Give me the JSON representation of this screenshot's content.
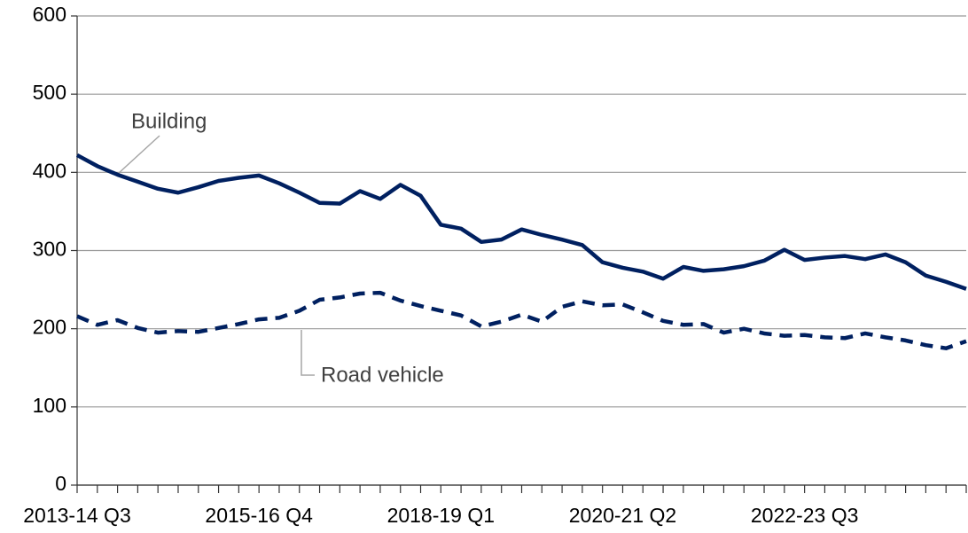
{
  "chart_data": {
    "type": "line",
    "categories": [
      "2013-14 Q3",
      null,
      null,
      null,
      null,
      null,
      null,
      null,
      null,
      "2015-16 Q4",
      null,
      null,
      null,
      null,
      null,
      null,
      null,
      null,
      "2018-19 Q1",
      null,
      null,
      null,
      null,
      null,
      null,
      null,
      null,
      "2020-21 Q2",
      null,
      null,
      null,
      null,
      null,
      null,
      null,
      null,
      "2022-23 Q3",
      null,
      null,
      null,
      null,
      null,
      null,
      null,
      null
    ],
    "series": [
      {
        "name": "Building",
        "color": "#002060",
        "line_style": "solid",
        "values": [
          422,
          408,
          397,
          388,
          379,
          374,
          381,
          389,
          393,
          396,
          386,
          374,
          361,
          360,
          376,
          366,
          384,
          370,
          333,
          328,
          311,
          314,
          327,
          320,
          314,
          307,
          285,
          278,
          273,
          264,
          279,
          274,
          276,
          280,
          287,
          301,
          288,
          291,
          293,
          289,
          295,
          285,
          268,
          260,
          251
        ]
      },
      {
        "name": "Road vehicle",
        "color": "#002060",
        "line_style": "dashed",
        "values": [
          216,
          205,
          211,
          201,
          195,
          197,
          196,
          201,
          206,
          212,
          214,
          223,
          237,
          240,
          245,
          246,
          236,
          229,
          223,
          217,
          203,
          209,
          218,
          209,
          228,
          235,
          230,
          231,
          221,
          210,
          205,
          206,
          195,
          200,
          194,
          191,
          192,
          189,
          188,
          194,
          189,
          185,
          179,
          175,
          184
        ]
      }
    ],
    "ylim": [
      0,
      600
    ],
    "yticks": [
      0,
      100,
      200,
      300,
      400,
      500,
      600
    ],
    "grid": true
  }
}
